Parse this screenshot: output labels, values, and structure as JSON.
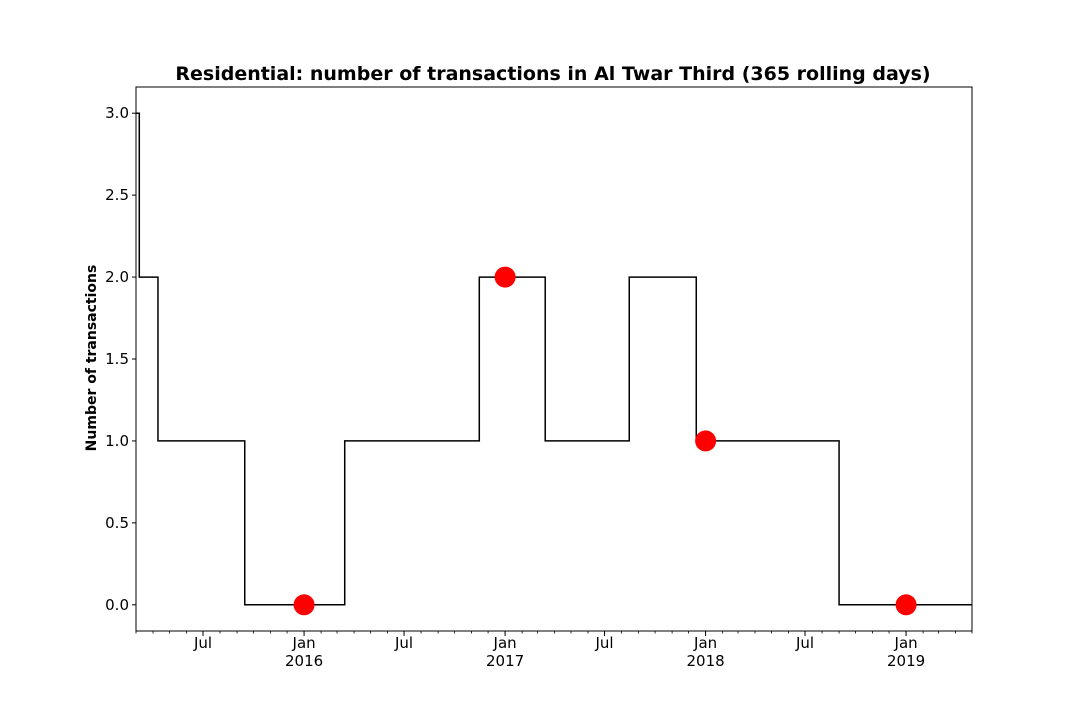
{
  "chart_data": {
    "type": "line",
    "title": "Residential: number of transactions in Al Twar Third (365 rolling days)",
    "xlabel": "",
    "ylabel": "Number of transactions",
    "xlim": [
      "2015-03-01",
      "2019-05-01"
    ],
    "ylim": [
      -0.16,
      3.16
    ],
    "yticks": [
      0.0,
      0.5,
      1.0,
      1.5,
      2.0,
      2.5,
      3.0
    ],
    "ytick_labels": [
      "0.0",
      "0.5",
      "1.0",
      "1.5",
      "2.0",
      "2.5",
      "3.0"
    ],
    "xticks_major": [
      {
        "date": "2015-07-01",
        "label": "Jul",
        "year": ""
      },
      {
        "date": "2016-01-01",
        "label": "Jan",
        "year": "2016"
      },
      {
        "date": "2016-07-01",
        "label": "Jul",
        "year": ""
      },
      {
        "date": "2017-01-01",
        "label": "Jan",
        "year": "2017"
      },
      {
        "date": "2017-07-01",
        "label": "Jul",
        "year": ""
      },
      {
        "date": "2018-01-01",
        "label": "Jan",
        "year": "2018"
      },
      {
        "date": "2018-07-01",
        "label": "Jul",
        "year": ""
      },
      {
        "date": "2019-01-01",
        "label": "Jan",
        "year": "2019"
      }
    ],
    "grid": false,
    "legend": "none",
    "series": [
      {
        "style": "step",
        "color": "#000000",
        "points": [
          {
            "x": "2015-03-01",
            "y": 3
          },
          {
            "x": "2015-03-07",
            "y": 2
          },
          {
            "x": "2015-04-10",
            "y": 1
          },
          {
            "x": "2015-09-15",
            "y": 0
          },
          {
            "x": "2016-03-15",
            "y": 1
          },
          {
            "x": "2016-11-15",
            "y": 2
          },
          {
            "x": "2017-03-15",
            "y": 1
          },
          {
            "x": "2017-08-15",
            "y": 2
          },
          {
            "x": "2017-12-15",
            "y": 1
          },
          {
            "x": "2018-09-01",
            "y": 0
          },
          {
            "x": "2019-05-01",
            "y": 0
          }
        ]
      },
      {
        "style": "markers",
        "color": "#ff0000",
        "points": [
          {
            "x": "2016-01-01",
            "y": 0
          },
          {
            "x": "2017-01-01",
            "y": 2
          },
          {
            "x": "2018-01-01",
            "y": 1
          },
          {
            "x": "2019-01-01",
            "y": 0
          }
        ]
      }
    ]
  }
}
